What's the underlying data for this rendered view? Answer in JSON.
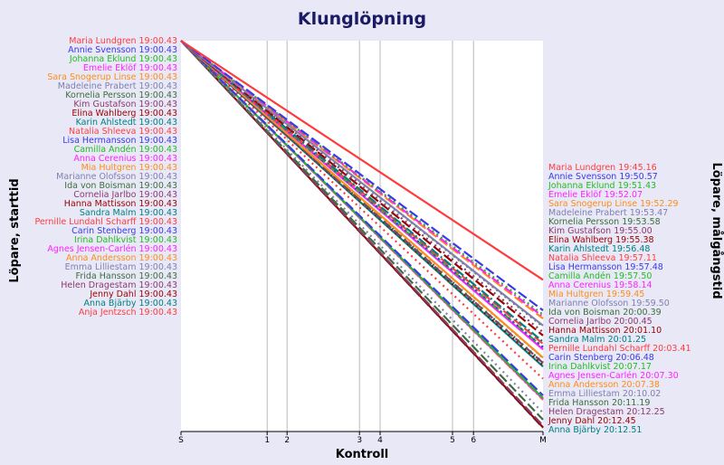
{
  "chart_data": {
    "type": "line",
    "title": "Klunglöpning",
    "xlabel": "Kontroll",
    "ylabel_left": "Löpare, starttid",
    "ylabel_right": "Löpare, målgångstid",
    "x_ticks": [
      {
        "label": "S",
        "pos": 0
      },
      {
        "label": "1",
        "pos": 0.238
      },
      {
        "label": "2",
        "pos": 0.293
      },
      {
        "label": "3",
        "pos": 0.493
      },
      {
        "label": "4",
        "pos": 0.55
      },
      {
        "label": "5",
        "pos": 0.75
      },
      {
        "label": "6",
        "pos": 0.808
      },
      {
        "label": "M",
        "pos": 1
      }
    ],
    "series": [
      {
        "name": "Maria Lundgren",
        "start": "19:00.43",
        "finish": "19:45.16",
        "color": "#ff3b3b",
        "dash": "solid"
      },
      {
        "name": "Annie Svensson",
        "start": "19:00.43",
        "finish": "19:50.57",
        "color": "#3a3ae8",
        "dash": "dashed"
      },
      {
        "name": "Johanna Eklund",
        "start": "19:00.43",
        "finish": "19:51.43",
        "color": "#22bb22",
        "dash": "dotted"
      },
      {
        "name": "Emelie Eklöf",
        "start": "19:00.43",
        "finish": "19:52.07",
        "color": "#ff22ff",
        "dash": "dashdot"
      },
      {
        "name": "Sara Snogerup Linse",
        "start": "19:00.43",
        "finish": "19:52.29",
        "color": "#ff8c1a",
        "dash": "dashed"
      },
      {
        "name": "Madeleine Prabert",
        "start": "19:00.43",
        "finish": "19:53.47",
        "color": "#8080b0",
        "dash": "solid"
      },
      {
        "name": "Kornelia Persson",
        "start": "19:00.43",
        "finish": "19:53.58",
        "color": "#3c6e3c",
        "dash": "dotted"
      },
      {
        "name": "Kim Gustafson",
        "start": "19:00.43",
        "finish": "19:55.00",
        "color": "#8b3a6b",
        "dash": "dotted"
      },
      {
        "name": "Elina Wahlberg",
        "start": "19:00.43",
        "finish": "19:55.38",
        "color": "#9b0000",
        "dash": "dashed"
      },
      {
        "name": "Karin Ahlstedt",
        "start": "19:00.43",
        "finish": "19:56.48",
        "color": "#008080",
        "dash": "dashdot"
      },
      {
        "name": "Natalia Shleeva",
        "start": "19:00.43",
        "finish": "19:57.11",
        "color": "#ff4040",
        "dash": "dashed"
      },
      {
        "name": "Lisa Hermansson",
        "start": "19:00.43",
        "finish": "19:57.48",
        "color": "#3a3ae8",
        "dash": "dotted"
      },
      {
        "name": "Camilla Andén",
        "start": "19:00.43",
        "finish": "19:57.50",
        "color": "#22bb22",
        "dash": "dashdot"
      },
      {
        "name": "Anna Cerenius",
        "start": "19:00.43",
        "finish": "19:58.14",
        "color": "#ff22ff",
        "dash": "solid"
      },
      {
        "name": "Mia Hultgren",
        "start": "19:00.43",
        "finish": "19:59.45",
        "color": "#ff8c1a",
        "dash": "solid"
      },
      {
        "name": "Marianne Olofsson",
        "start": "19:00.43",
        "finish": "19:59.50",
        "color": "#8080b0",
        "dash": "dotted"
      },
      {
        "name": "Ida von Boisman",
        "start": "19:00.43",
        "finish": "20:00.39",
        "color": "#3c6e3c",
        "dash": "dotted"
      },
      {
        "name": "Cornelia Jarlbo",
        "start": "19:00.43",
        "finish": "20:00.45",
        "color": "#8b3a6b",
        "dash": "dashed"
      },
      {
        "name": "Hanna Mattisson",
        "start": "19:00.43",
        "finish": "20:01.10",
        "color": "#9b0000",
        "dash": "dotted"
      },
      {
        "name": "Sandra Malm",
        "start": "19:00.43",
        "finish": "20:01.25",
        "color": "#008080",
        "dash": "solid"
      },
      {
        "name": "Pernille Lundahl Scharff",
        "start": "19:00.43",
        "finish": "20:03.41",
        "color": "#ff3b3b",
        "dash": "dotted"
      },
      {
        "name": "Carin Stenberg",
        "start": "19:00.43",
        "finish": "20:06.48",
        "color": "#3a3ae8",
        "dash": "dashed"
      },
      {
        "name": "Irina Dahlkvist",
        "start": "19:00.43",
        "finish": "20:07.17",
        "color": "#22bb22",
        "dash": "solid"
      },
      {
        "name": "Agnes Jensen-Carlén",
        "start": "19:00.43",
        "finish": "20:07.30",
        "color": "#ff22ff",
        "dash": "solid"
      },
      {
        "name": "Anna Andersson",
        "start": "19:00.43",
        "finish": "20:07.38",
        "color": "#ff8c1a",
        "dash": "dashdot"
      },
      {
        "name": "Emma Lilliestam",
        "start": "19:00.43",
        "finish": "20:10.02",
        "color": "#8080b0",
        "dash": "dotted"
      },
      {
        "name": "Frida Hansson",
        "start": "19:00.43",
        "finish": "20:11.19",
        "color": "#3c6e3c",
        "dash": "dashed"
      },
      {
        "name": "Helen Dragestam",
        "start": "19:00.43",
        "finish": "20:12.25",
        "color": "#8b3a6b",
        "dash": "dashed"
      },
      {
        "name": "Jenny Dahl",
        "start": "19:00.43",
        "finish": "20:12.45",
        "color": "#9b0000",
        "dash": "solid"
      },
      {
        "name": "Anna Bjärby",
        "start": "19:00.43",
        "finish": "20:12.51",
        "color": "#008080",
        "dash": "dashed"
      },
      {
        "name": "Anja Jentzsch",
        "start": "19:00.43",
        "finish": "",
        "color": "#ff3b3b",
        "dash": "solid"
      }
    ],
    "colors": {
      "background": "#e8e8f7",
      "plot_background": "#ffffff",
      "title": "#1a1a66",
      "grid": "#b8b8b8"
    },
    "grid": true
  }
}
